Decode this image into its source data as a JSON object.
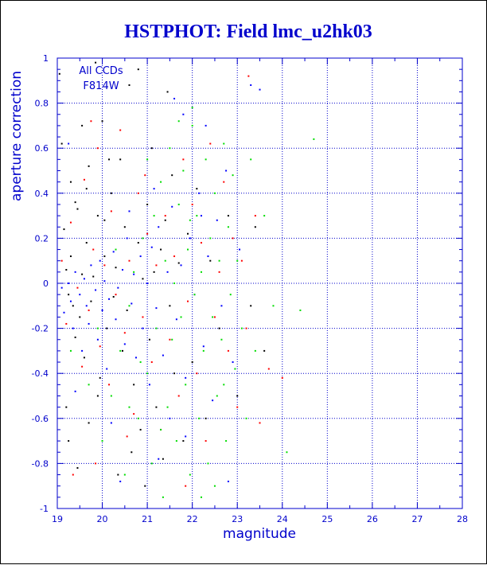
{
  "chart_data": {
    "type": "scatter",
    "title": "HSTPHOT: Field lmc_u2hk03",
    "xlabel": "magnitude",
    "ylabel": "aperture correction",
    "xlim": [
      19,
      28
    ],
    "ylim": [
      -1,
      1
    ],
    "x_ticks": [
      19,
      20,
      21,
      22,
      23,
      24,
      25,
      26,
      27,
      28
    ],
    "y_ticks": [
      -1,
      -0.8,
      -0.6,
      -0.4,
      -0.2,
      0,
      0.2,
      0.4,
      0.6,
      0.8,
      1
    ],
    "grid": true,
    "annotations": [
      "All CCDs",
      "F814W"
    ],
    "colors": {
      "axis": "#0000cc",
      "title": "#0000cc",
      "grid": "#0000cc",
      "series": [
        "#000000",
        "#ff0000",
        "#0000ff",
        "#00dd00"
      ]
    },
    "series": [
      {
        "color": "#000000",
        "points": [
          [
            19.05,
            0.93
          ],
          [
            19.1,
            0.62
          ],
          [
            19.15,
            0.24
          ],
          [
            19.2,
            0.06
          ],
          [
            19.25,
            -0.05
          ],
          [
            19.3,
            0.45
          ],
          [
            19.3,
            0.12
          ],
          [
            19.35,
            -0.1
          ],
          [
            19.4,
            -0.24
          ],
          [
            19.45,
            0.33
          ],
          [
            19.5,
            -0.15
          ],
          [
            19.55,
            0.04
          ],
          [
            19.6,
            -0.33
          ],
          [
            19.65,
            0.18
          ],
          [
            19.7,
            0.52
          ],
          [
            19.75,
            -0.08
          ],
          [
            19.8,
            0.03
          ],
          [
            19.85,
            0.98
          ],
          [
            19.9,
            0.3
          ],
          [
            19.95,
            -0.42
          ],
          [
            20.0,
            0.72
          ],
          [
            20.05,
            0.12
          ],
          [
            20.1,
            -0.2
          ],
          [
            20.2,
            0.4
          ],
          [
            20.25,
            -0.06
          ],
          [
            20.3,
            0.07
          ],
          [
            20.4,
            0.55
          ],
          [
            20.45,
            -0.3
          ],
          [
            20.5,
            0.25
          ],
          [
            20.55,
            -0.12
          ],
          [
            20.6,
            0.88
          ],
          [
            20.7,
            -0.45
          ],
          [
            20.8,
            0.18
          ],
          [
            20.85,
            -0.65
          ],
          [
            20.9,
            0.02
          ],
          [
            20.95,
            -0.9
          ],
          [
            21.0,
            0.35
          ],
          [
            21.05,
            -0.25
          ],
          [
            21.1,
            0.6
          ],
          [
            21.15,
            0.05
          ],
          [
            21.2,
            -0.55
          ],
          [
            21.3,
            0.15
          ],
          [
            21.35,
            -0.78
          ],
          [
            21.4,
            0.28
          ],
          [
            21.5,
            -0.1
          ],
          [
            21.55,
            0.48
          ],
          [
            21.6,
            -0.4
          ],
          [
            21.7,
            0.09
          ],
          [
            21.8,
            -0.7
          ],
          [
            21.9,
            0.22
          ],
          [
            22.0,
            -0.35
          ],
          [
            22.1,
            0.42
          ],
          [
            22.3,
            -0.6
          ],
          [
            22.4,
            0.1
          ],
          [
            22.6,
            -0.2
          ],
          [
            22.8,
            0.3
          ],
          [
            23.0,
            -0.5
          ],
          [
            23.3,
            -0.1
          ],
          [
            23.4,
            0.25
          ],
          [
            23.6,
            -0.3
          ],
          [
            19.2,
            -0.55
          ],
          [
            19.45,
            -0.82
          ],
          [
            19.7,
            -0.62
          ],
          [
            20.35,
            -0.85
          ],
          [
            19.25,
            -0.7
          ],
          [
            20.65,
            -0.75
          ],
          [
            19.9,
            -0.5
          ],
          [
            19.55,
            0.7
          ],
          [
            20.15,
            0.55
          ],
          [
            19.4,
            0.36
          ],
          [
            20.8,
            0.95
          ],
          [
            19.65,
            0.42
          ],
          [
            21.45,
            0.85
          ],
          [
            20.05,
            0.28
          ]
        ]
      },
      {
        "color": "#ff0000",
        "points": [
          [
            19.1,
            0.1
          ],
          [
            19.2,
            -0.18
          ],
          [
            19.3,
            0.27
          ],
          [
            19.45,
            -0.02
          ],
          [
            19.55,
            -0.37
          ],
          [
            19.6,
            0.46
          ],
          [
            19.7,
            -0.12
          ],
          [
            19.8,
            0.15
          ],
          [
            19.9,
            0.6
          ],
          [
            19.95,
            -0.28
          ],
          [
            20.05,
            0.08
          ],
          [
            20.15,
            -0.45
          ],
          [
            20.2,
            0.32
          ],
          [
            20.3,
            -0.05
          ],
          [
            20.4,
            0.68
          ],
          [
            20.5,
            -0.22
          ],
          [
            20.6,
            0.1
          ],
          [
            20.7,
            -0.58
          ],
          [
            20.8,
            0.4
          ],
          [
            20.9,
            -0.15
          ],
          [
            21.0,
            0.22
          ],
          [
            21.1,
            -0.35
          ],
          [
            21.2,
            0.08
          ],
          [
            21.3,
            -0.65
          ],
          [
            21.4,
            0.3
          ],
          [
            21.5,
            -0.25
          ],
          [
            21.6,
            0.12
          ],
          [
            21.7,
            -0.5
          ],
          [
            21.8,
            0.55
          ],
          [
            21.9,
            -0.08
          ],
          [
            22.0,
            0.35
          ],
          [
            22.1,
            -0.4
          ],
          [
            22.2,
            0.18
          ],
          [
            22.3,
            -0.7
          ],
          [
            22.4,
            0.62
          ],
          [
            22.5,
            -0.15
          ],
          [
            22.6,
            0.05
          ],
          [
            22.7,
            0.45
          ],
          [
            22.8,
            -0.3
          ],
          [
            22.9,
            0.2
          ],
          [
            23.0,
            -0.55
          ],
          [
            23.1,
            0.1
          ],
          [
            23.25,
            0.92
          ],
          [
            23.4,
            0.3
          ],
          [
            23.5,
            -0.62
          ],
          [
            23.7,
            -0.38
          ],
          [
            24.0,
            -0.42
          ],
          [
            23.2,
            -0.2
          ],
          [
            19.35,
            -0.85
          ],
          [
            19.85,
            -0.8
          ],
          [
            20.55,
            -0.68
          ],
          [
            21.85,
            -0.9
          ],
          [
            19.75,
            0.72
          ],
          [
            20.95,
            0.48
          ]
        ]
      },
      {
        "color": "#0000ff",
        "points": [
          [
            19.1,
            -0.02
          ],
          [
            19.15,
            -0.13
          ],
          [
            19.25,
            0.0
          ],
          [
            19.3,
            -0.08
          ],
          [
            19.35,
            -0.2
          ],
          [
            19.4,
            0.05
          ],
          [
            19.5,
            -0.05
          ],
          [
            19.55,
            -0.3
          ],
          [
            19.6,
            0.02
          ],
          [
            19.65,
            -0.1
          ],
          [
            19.7,
            -0.18
          ],
          [
            19.75,
            0.08
          ],
          [
            19.85,
            -0.03
          ],
          [
            19.9,
            -0.25
          ],
          [
            19.95,
            0.1
          ],
          [
            20.0,
            -0.12
          ],
          [
            20.05,
            0.01
          ],
          [
            20.1,
            -0.38
          ],
          [
            20.15,
            -0.07
          ],
          [
            20.25,
            0.14
          ],
          [
            20.3,
            -0.16
          ],
          [
            20.35,
            -0.02
          ],
          [
            20.45,
            0.06
          ],
          [
            20.5,
            -0.27
          ],
          [
            20.55,
            0.2
          ],
          [
            20.65,
            -0.09
          ],
          [
            20.7,
            0.04
          ],
          [
            20.75,
            -0.33
          ],
          [
            20.85,
            0.12
          ],
          [
            20.9,
            -0.2
          ],
          [
            21.0,
            0.0
          ],
          [
            21.05,
            -0.45
          ],
          [
            21.1,
            0.16
          ],
          [
            21.2,
            -0.11
          ],
          [
            21.25,
            0.25
          ],
          [
            21.35,
            -0.32
          ],
          [
            21.45,
            0.05
          ],
          [
            21.5,
            -0.6
          ],
          [
            21.55,
            0.34
          ],
          [
            21.65,
            -0.16
          ],
          [
            21.75,
            0.08
          ],
          [
            21.85,
            -0.42
          ],
          [
            21.95,
            0.2
          ],
          [
            22.05,
            -0.05
          ],
          [
            22.15,
            0.4
          ],
          [
            22.25,
            -0.28
          ],
          [
            22.35,
            0.12
          ],
          [
            22.45,
            -0.52
          ],
          [
            22.55,
            0.28
          ],
          [
            22.65,
            -0.1
          ],
          [
            22.75,
            0.5
          ],
          [
            22.9,
            -0.35
          ],
          [
            23.05,
            0.15
          ],
          [
            23.3,
            0.88
          ],
          [
            23.5,
            0.86
          ],
          [
            21.6,
            0.82
          ],
          [
            21.8,
            0.75
          ],
          [
            22.3,
            0.7
          ],
          [
            19.25,
            0.62
          ],
          [
            21.25,
            -0.78
          ],
          [
            21.85,
            -0.68
          ],
          [
            22.8,
            -0.88
          ],
          [
            19.4,
            -0.48
          ],
          [
            20.2,
            -0.62
          ],
          [
            20.6,
            0.32
          ],
          [
            21.15,
            0.42
          ],
          [
            22.2,
            0.3
          ],
          [
            20.4,
            -0.88
          ]
        ]
      },
      {
        "color": "#00dd00",
        "points": [
          [
            19.3,
            -0.3
          ],
          [
            19.7,
            -0.45
          ],
          [
            20.0,
            -0.7
          ],
          [
            20.2,
            -0.5
          ],
          [
            20.4,
            -0.3
          ],
          [
            20.5,
            -0.85
          ],
          [
            20.6,
            -0.1
          ],
          [
            20.7,
            0.05
          ],
          [
            20.8,
            -0.6
          ],
          [
            20.9,
            0.2
          ],
          [
            21.0,
            -0.4
          ],
          [
            21.1,
            -0.8
          ],
          [
            21.15,
            0.3
          ],
          [
            21.2,
            -0.2
          ],
          [
            21.3,
            0.45
          ],
          [
            21.35,
            -0.95
          ],
          [
            21.4,
            0.1
          ],
          [
            21.45,
            -0.55
          ],
          [
            21.5,
            0.6
          ],
          [
            21.55,
            -0.25
          ],
          [
            21.6,
            0.0
          ],
          [
            21.65,
            -0.7
          ],
          [
            21.7,
            0.35
          ],
          [
            21.75,
            -0.15
          ],
          [
            21.8,
            0.5
          ],
          [
            21.85,
            -0.45
          ],
          [
            21.9,
            0.15
          ],
          [
            21.95,
            -0.85
          ],
          [
            22.0,
            0.7
          ],
          [
            22.05,
            -0.05
          ],
          [
            22.1,
            0.3
          ],
          [
            22.15,
            -0.6
          ],
          [
            22.2,
            0.05
          ],
          [
            22.25,
            -0.3
          ],
          [
            22.3,
            0.55
          ],
          [
            22.35,
            -0.8
          ],
          [
            22.4,
            0.2
          ],
          [
            22.45,
            -0.15
          ],
          [
            22.5,
            0.4
          ],
          [
            22.55,
            -0.5
          ],
          [
            22.6,
            0.1
          ],
          [
            22.65,
            -0.25
          ],
          [
            22.7,
            0.62
          ],
          [
            22.75,
            -0.7
          ],
          [
            22.8,
            0.25
          ],
          [
            22.85,
            -0.05
          ],
          [
            22.9,
            0.48
          ],
          [
            22.95,
            -0.38
          ],
          [
            23.0,
            0.1
          ],
          [
            23.1,
            -0.2
          ],
          [
            23.2,
            -0.6
          ],
          [
            23.4,
            -0.3
          ],
          [
            23.6,
            0.3
          ],
          [
            23.8,
            -0.1
          ],
          [
            24.1,
            -0.75
          ],
          [
            24.4,
            -0.12
          ],
          [
            24.7,
            0.64
          ],
          [
            22.0,
            0.78
          ],
          [
            21.7,
            0.72
          ],
          [
            22.5,
            -0.9
          ],
          [
            21.3,
            -0.65
          ],
          [
            20.85,
            -0.35
          ],
          [
            20.3,
            0.15
          ],
          [
            19.9,
            -0.2
          ],
          [
            22.2,
            -0.95
          ],
          [
            23.3,
            0.55
          ],
          [
            21.0,
            0.55
          ],
          [
            20.6,
            -0.55
          ],
          [
            22.7,
            -0.45
          ],
          [
            21.95,
            0.28
          ]
        ]
      }
    ]
  }
}
